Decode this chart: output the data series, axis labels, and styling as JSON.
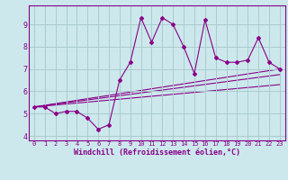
{
  "bg_color": "#cce8ec",
  "line_color": "#880088",
  "grid_color": "#aacccc",
  "xlabel": "Windchill (Refroidissement éolien,°C)",
  "ylim": [
    3.8,
    9.85
  ],
  "xlim": [
    -0.5,
    23.5
  ],
  "yticks": [
    4,
    5,
    6,
    7,
    8,
    9
  ],
  "xticks": [
    0,
    1,
    2,
    3,
    4,
    5,
    6,
    7,
    8,
    9,
    10,
    11,
    12,
    13,
    14,
    15,
    16,
    17,
    18,
    19,
    20,
    21,
    22,
    23
  ],
  "series1_x": [
    0,
    1,
    2,
    3,
    4,
    5,
    6,
    7,
    8,
    9,
    10,
    11,
    12,
    13,
    14,
    15,
    16,
    17,
    18,
    19,
    20,
    21,
    22,
    23
  ],
  "series1_y": [
    5.3,
    5.3,
    5.0,
    5.1,
    5.1,
    4.8,
    4.3,
    4.5,
    6.5,
    7.3,
    9.3,
    8.2,
    9.3,
    9.0,
    8.0,
    6.8,
    9.2,
    7.5,
    7.3,
    7.3,
    7.4,
    8.4,
    7.3,
    7.0
  ],
  "series2_x": [
    0,
    23
  ],
  "series2_y": [
    5.3,
    7.0
  ],
  "series3_x": [
    0,
    23
  ],
  "series3_y": [
    5.3,
    6.3
  ],
  "series4_x": [
    0,
    23
  ],
  "series4_y": [
    5.3,
    6.75
  ]
}
